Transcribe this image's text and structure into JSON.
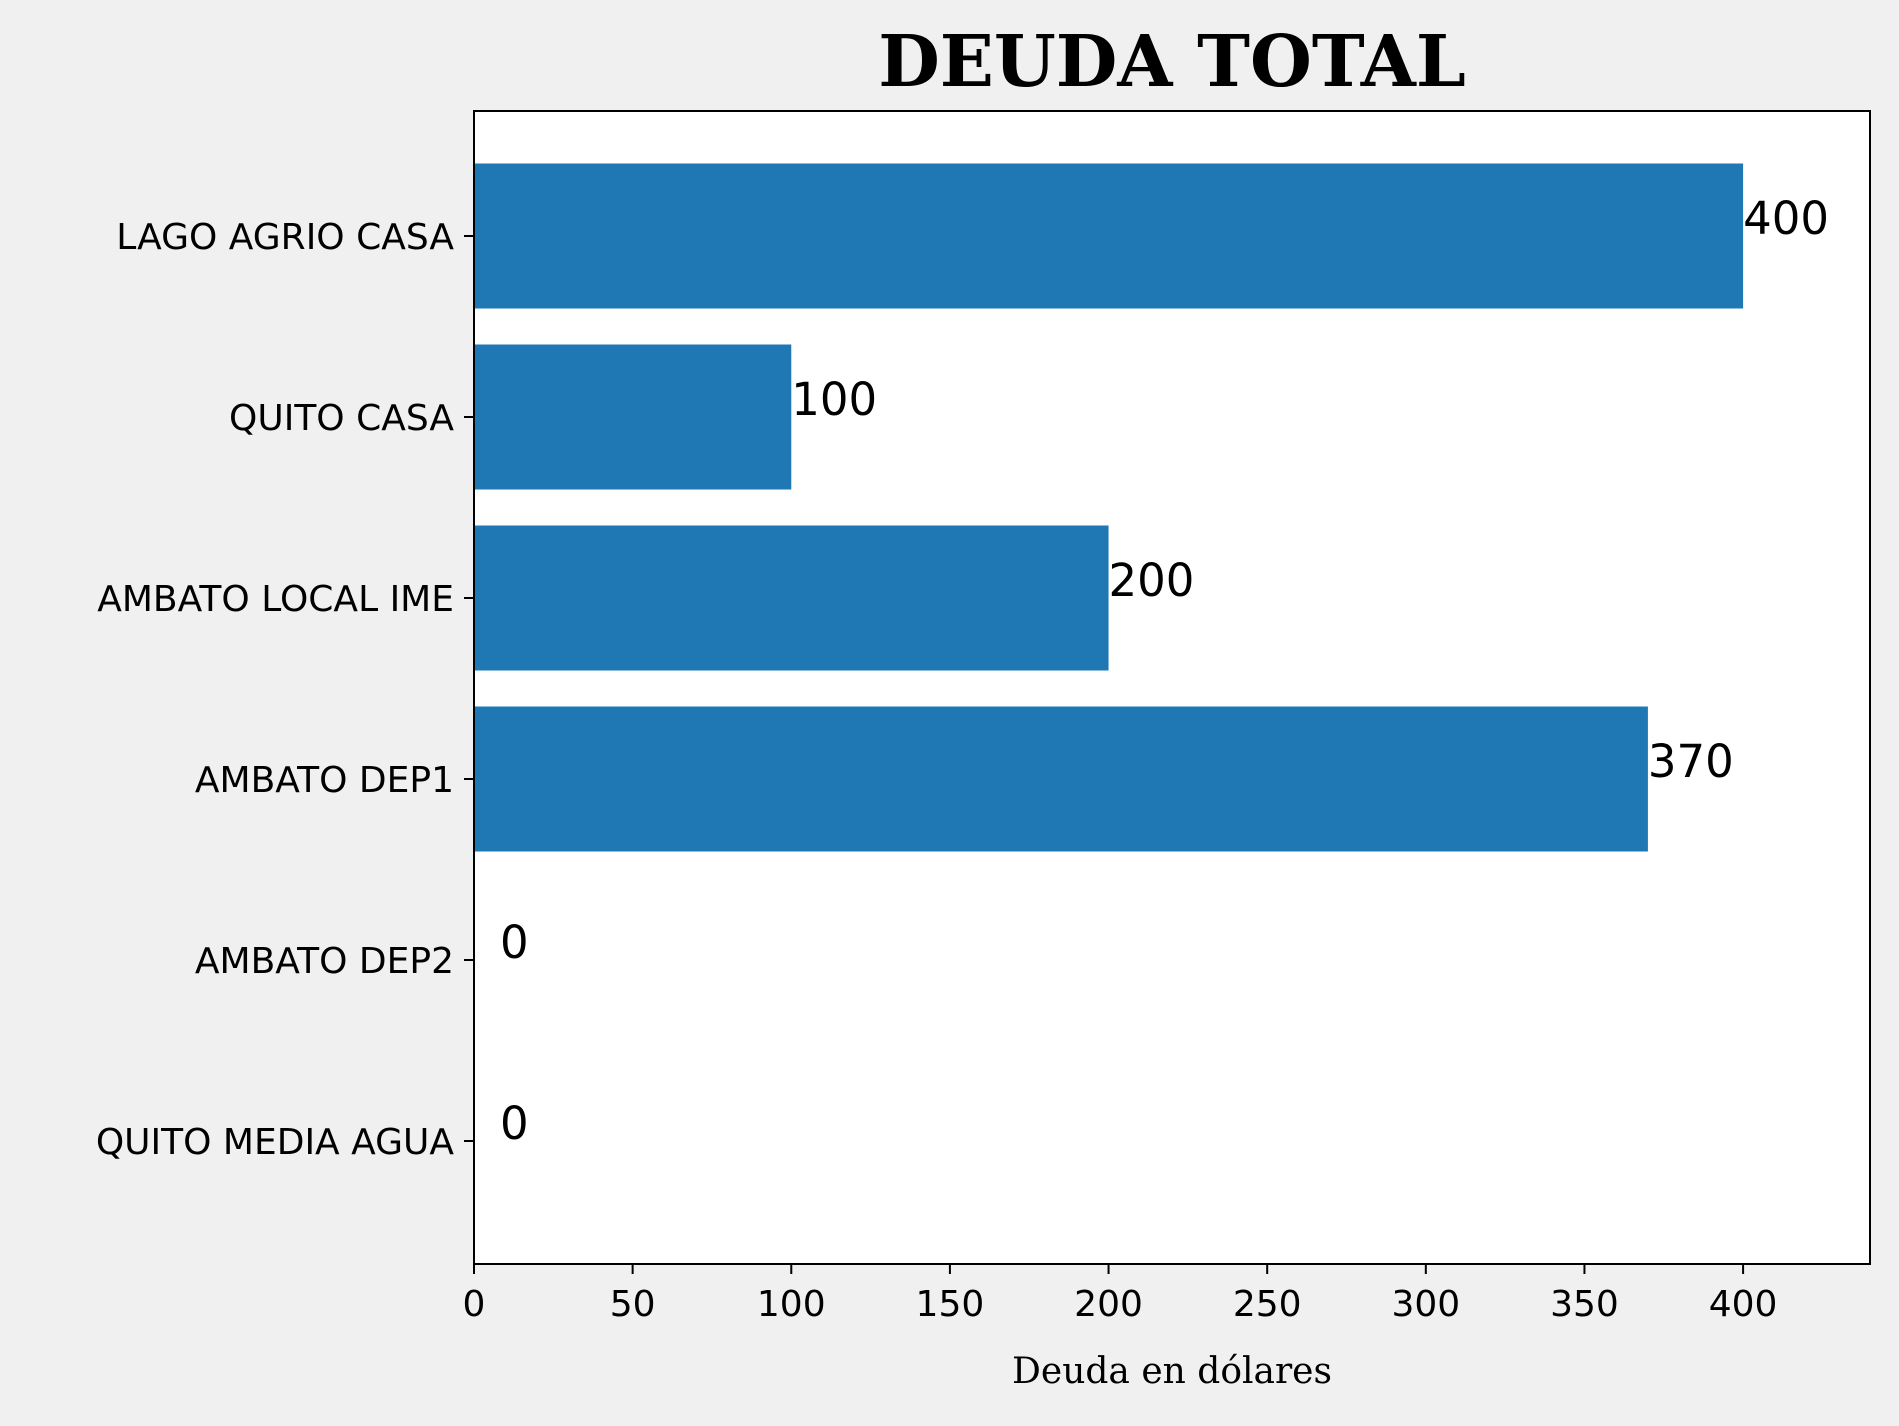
{
  "chart_data": {
    "type": "bar",
    "orientation": "horizontal",
    "title": "DEUDA TOTAL",
    "xlabel": "Deuda en dólares",
    "ylabel": "",
    "categories": [
      "LAGO AGRIO CASA",
      "QUITO CASA",
      "AMBATO LOCAL IME",
      "AMBATO DEP1",
      "AMBATO DEP2",
      "QUITO MEDIA AGUA"
    ],
    "values": [
      400,
      100,
      200,
      370,
      0,
      0
    ],
    "data_labels": [
      "400",
      "100",
      "200",
      "370",
      "0",
      "0"
    ],
    "xlim": [
      0,
      440
    ],
    "xticks": [
      0,
      50,
      100,
      150,
      200,
      250,
      300,
      350,
      400
    ],
    "grid": false,
    "colors": {
      "bar": "#1f77b4",
      "figure_background": "#f0f0f0",
      "plot_background": "#ffffff",
      "axis": "#000000",
      "text": "#000000"
    }
  }
}
